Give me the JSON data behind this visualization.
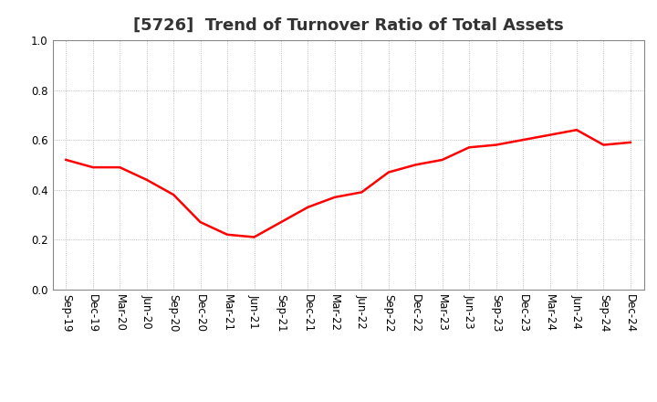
{
  "title": "[5726]  Trend of Turnover Ratio of Total Assets",
  "x_labels": [
    "Sep-19",
    "Dec-19",
    "Mar-20",
    "Jun-20",
    "Sep-20",
    "Dec-20",
    "Mar-21",
    "Jun-21",
    "Sep-21",
    "Dec-21",
    "Mar-22",
    "Jun-22",
    "Sep-22",
    "Dec-22",
    "Mar-23",
    "Jun-23",
    "Sep-23",
    "Dec-23",
    "Mar-24",
    "Jun-24",
    "Sep-24",
    "Dec-24"
  ],
  "y_values": [
    0.52,
    0.49,
    0.49,
    0.44,
    0.38,
    0.27,
    0.22,
    0.21,
    0.27,
    0.33,
    0.37,
    0.39,
    0.47,
    0.5,
    0.52,
    0.57,
    0.58,
    0.6,
    0.62,
    0.64,
    0.58,
    0.59
  ],
  "line_color": "#FF0000",
  "line_width": 1.8,
  "ylim": [
    0.0,
    1.0
  ],
  "yticks": [
    0.0,
    0.2,
    0.4,
    0.6,
    0.8,
    1.0
  ],
  "background_color": "#FFFFFF",
  "grid_color": "#AAAAAA",
  "title_fontsize": 13,
  "title_color": "#333333",
  "tick_fontsize": 8.5
}
